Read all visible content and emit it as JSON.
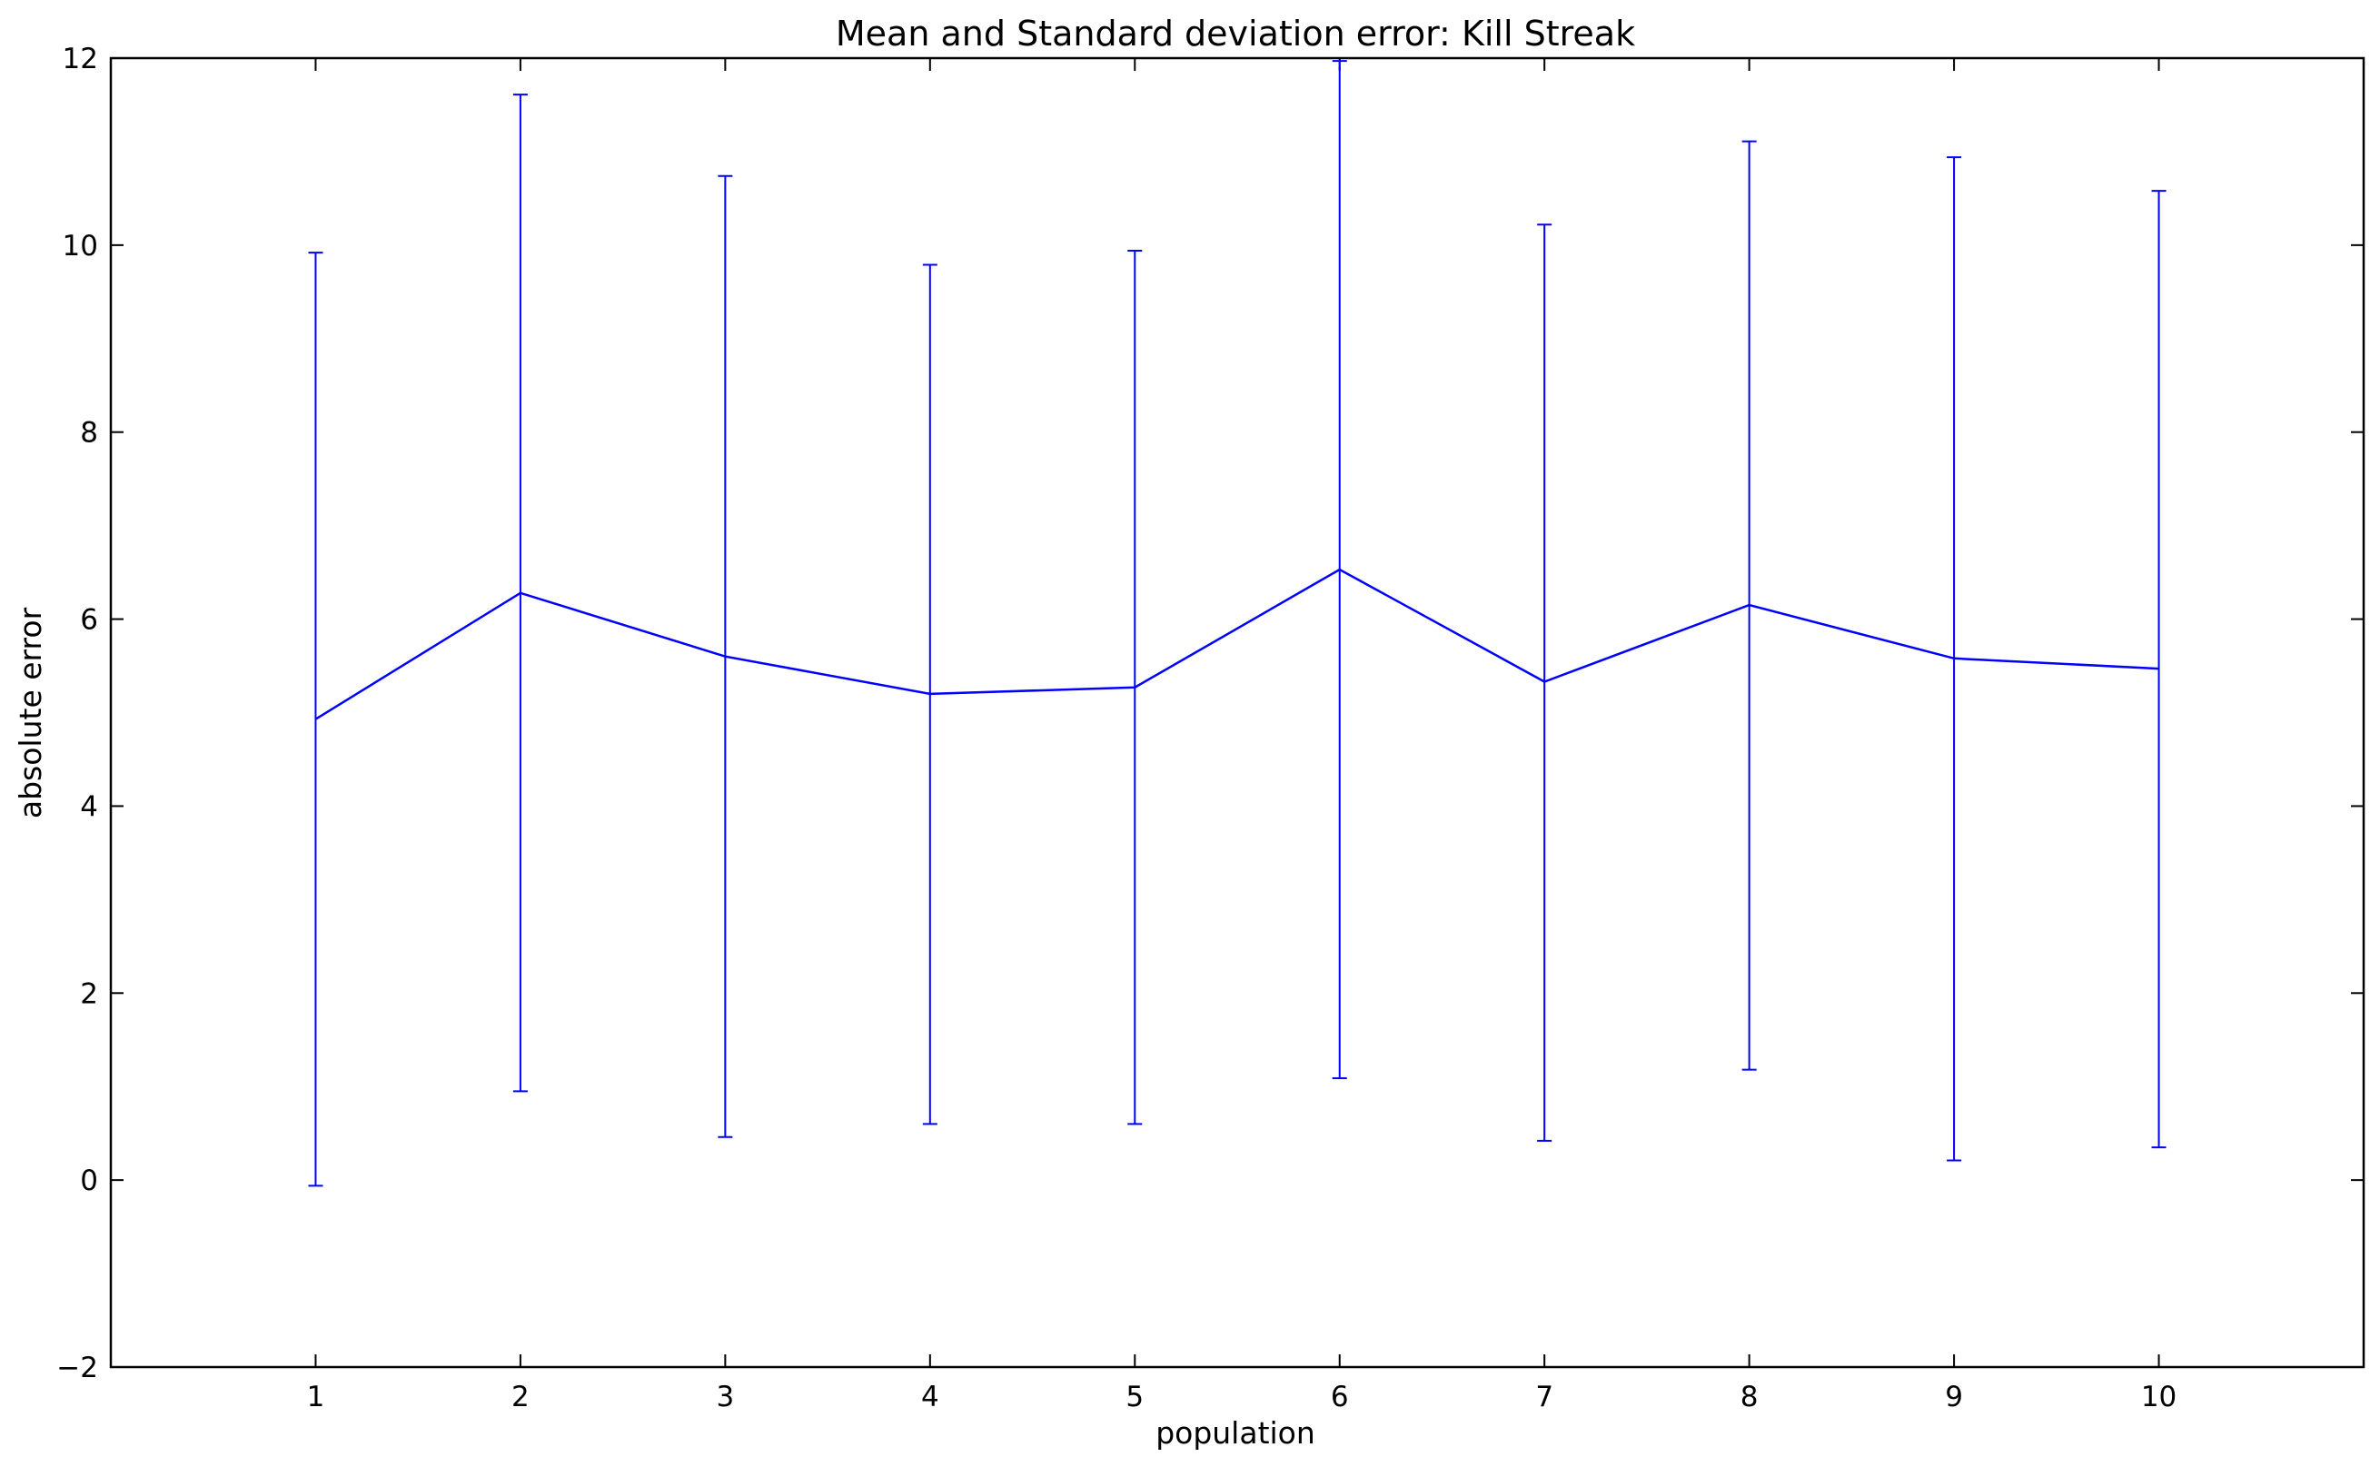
{
  "chart_data": {
    "type": "line",
    "title": "Mean and Standard deviation error: Kill Streak",
    "xlabel": "population",
    "ylabel": "absolute error",
    "xlim": [
      0,
      11
    ],
    "ylim": [
      -2,
      12
    ],
    "x_ticks": [
      1,
      2,
      3,
      4,
      5,
      6,
      7,
      8,
      9,
      10
    ],
    "y_ticks": [
      -2,
      0,
      2,
      4,
      6,
      8,
      10,
      12
    ],
    "grid": false,
    "color": "#0000ff",
    "series": [
      {
        "x": [
          1,
          2,
          3,
          4,
          5,
          6,
          7,
          8,
          9,
          10
        ],
        "mean": [
          4.93,
          6.28,
          5.6,
          5.2,
          5.27,
          6.53,
          5.33,
          6.15,
          5.58,
          5.47
        ],
        "lower": [
          -0.06,
          0.95,
          0.46,
          0.6,
          0.6,
          1.09,
          0.42,
          1.18,
          0.21,
          0.35
        ],
        "upper": [
          9.92,
          11.61,
          10.74,
          9.79,
          9.94,
          11.97,
          10.22,
          11.11,
          10.94,
          10.58
        ]
      }
    ]
  }
}
